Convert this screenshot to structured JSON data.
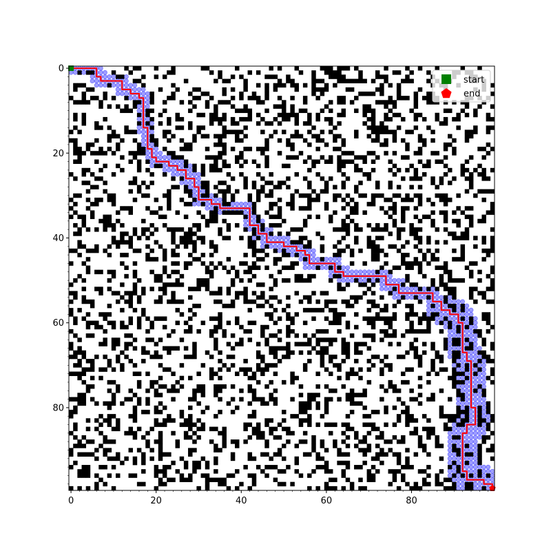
{
  "chart_data": {
    "type": "heatmap",
    "title": "",
    "xlabel": "",
    "ylabel": "",
    "grid_size": [
      100,
      100
    ],
    "xlim": [
      -0.5,
      99.5
    ],
    "ylim": [
      99.5,
      -0.5
    ],
    "x_ticks": [
      0,
      20,
      40,
      60,
      80
    ],
    "y_ticks": [
      0,
      20,
      40,
      60,
      80
    ],
    "x_tick_labels": [
      "0",
      "20",
      "40",
      "60",
      "80"
    ],
    "y_tick_labels": [
      "0",
      "20",
      "40",
      "60",
      "80"
    ],
    "grid": false,
    "legend_position": "top-right",
    "colors": {
      "free": "#ffffff",
      "obstacle": "#000000",
      "explored": "#4d4dff",
      "path": "#ff0000",
      "start": "#008000",
      "end": "#ff0000"
    },
    "obstacle_density": 0.3,
    "series": [
      {
        "name": "start",
        "marker": "square",
        "color": "#008000",
        "x": [
          0
        ],
        "y": [
          0
        ]
      },
      {
        "name": "end",
        "marker": "pentagon",
        "color": "#ff0000",
        "x": [
          99
        ],
        "y": [
          99
        ]
      }
    ],
    "path": [
      [
        0,
        0
      ],
      [
        6,
        0
      ],
      [
        6,
        2
      ],
      [
        7,
        2
      ],
      [
        7,
        3
      ],
      [
        12,
        3
      ],
      [
        12,
        5
      ],
      [
        14,
        5
      ],
      [
        14,
        6
      ],
      [
        16,
        6
      ],
      [
        16,
        7
      ],
      [
        17,
        7
      ],
      [
        17,
        14
      ],
      [
        18,
        14
      ],
      [
        18,
        19
      ],
      [
        19,
        19
      ],
      [
        19,
        21
      ],
      [
        20,
        21
      ],
      [
        20,
        22
      ],
      [
        23,
        22
      ],
      [
        23,
        23
      ],
      [
        25,
        23
      ],
      [
        25,
        24
      ],
      [
        27,
        24
      ],
      [
        27,
        26
      ],
      [
        29,
        26
      ],
      [
        29,
        28
      ],
      [
        30,
        28
      ],
      [
        30,
        31
      ],
      [
        33,
        31
      ],
      [
        33,
        32
      ],
      [
        35,
        32
      ],
      [
        35,
        33
      ],
      [
        42,
        33
      ],
      [
        42,
        37
      ],
      [
        44,
        37
      ],
      [
        44,
        39
      ],
      [
        46,
        39
      ],
      [
        46,
        41
      ],
      [
        50,
        41
      ],
      [
        50,
        42
      ],
      [
        53,
        42
      ],
      [
        53,
        43
      ],
      [
        55,
        43
      ],
      [
        55,
        44
      ],
      [
        56,
        44
      ],
      [
        56,
        46
      ],
      [
        62,
        46
      ],
      [
        62,
        48
      ],
      [
        64,
        48
      ],
      [
        64,
        49
      ],
      [
        74,
        49
      ],
      [
        74,
        51
      ],
      [
        77,
        51
      ],
      [
        77,
        53
      ],
      [
        85,
        53
      ],
      [
        85,
        55
      ],
      [
        87,
        55
      ],
      [
        87,
        57
      ],
      [
        89,
        57
      ],
      [
        89,
        58
      ],
      [
        91,
        58
      ],
      [
        91,
        60
      ],
      [
        92,
        60
      ],
      [
        92,
        67
      ],
      [
        93,
        67
      ],
      [
        93,
        69
      ],
      [
        94,
        69
      ],
      [
        94,
        80
      ],
      [
        95,
        80
      ],
      [
        95,
        84
      ],
      [
        93,
        84
      ],
      [
        93,
        86
      ],
      [
        92,
        86
      ],
      [
        92,
        95
      ],
      [
        93,
        95
      ],
      [
        93,
        97
      ],
      [
        97,
        97
      ],
      [
        97,
        98
      ],
      [
        99,
        98
      ],
      [
        99,
        99
      ]
    ],
    "legend": [
      "start",
      "end"
    ]
  }
}
